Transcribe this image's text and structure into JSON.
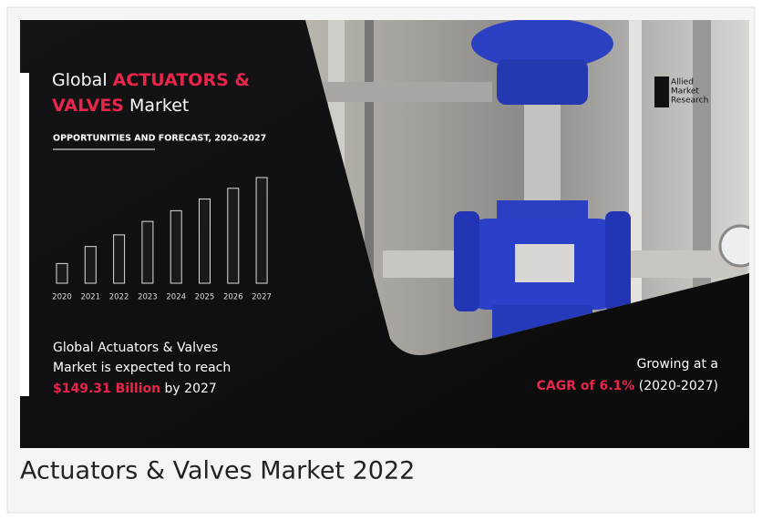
{
  "headline": {
    "line1_white": "Global ",
    "line1_red": "ACTUATORS &",
    "line2_red": "VALVES",
    "line2_white": " Market"
  },
  "subtitle": "OPPORTUNITIES AND FORECAST, 2020-2027",
  "chart_data": {
    "type": "bar",
    "categories": [
      "2020",
      "2021",
      "2022",
      "2023",
      "2024",
      "2025",
      "2026",
      "2027"
    ],
    "values": [
      22,
      41,
      54,
      69,
      81,
      94,
      106,
      118
    ],
    "ylim": [
      0,
      120
    ],
    "color": "#1a1a1c"
  },
  "reach": {
    "line1": "Global Actuators & Valves",
    "line2": "Market is expected to reach",
    "amount": "$149.31 Billion",
    "tail": " by 2027"
  },
  "growth": {
    "line1": "Growing at a",
    "cagr": "CAGR of 6.1%",
    "period": " (2020-2027)"
  },
  "logo": {
    "line1": "Allied",
    "line2": "Market",
    "line3": "Research"
  },
  "caption": "Actuators & Valves Market 2022"
}
